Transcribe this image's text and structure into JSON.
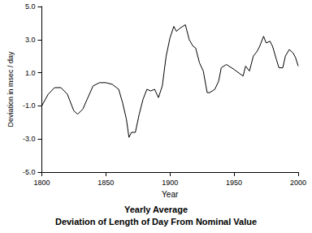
{
  "chart_data": {
    "type": "line",
    "title": "Yearly Average",
    "subtitle": "Deviation of Length of Day From Nominal Value",
    "x_label": "Year",
    "y_label": "Deviation in msec / day",
    "x": [
      1800,
      1805,
      1810,
      1815,
      1820,
      1825,
      1828,
      1832,
      1836,
      1840,
      1845,
      1850,
      1855,
      1860,
      1863,
      1866,
      1868,
      1870,
      1873,
      1876,
      1879,
      1882,
      1885,
      1888,
      1891,
      1894,
      1897,
      1900,
      1903,
      1905,
      1908,
      1912,
      1915,
      1918,
      1920,
      1923,
      1926,
      1929,
      1931,
      1935,
      1938,
      1940,
      1944,
      1950,
      1957,
      1959,
      1962,
      1965,
      1968,
      1970,
      1973,
      1975,
      1978,
      1980,
      1983,
      1985,
      1988,
      1990,
      1993,
      1996,
      1998,
      2000
    ],
    "values": [
      -1.0,
      -0.3,
      0.1,
      0.1,
      -0.3,
      -1.3,
      -1.5,
      -1.2,
      -0.5,
      0.2,
      0.4,
      0.4,
      0.3,
      0.0,
      -0.8,
      -1.8,
      -2.9,
      -2.6,
      -2.6,
      -1.5,
      -0.6,
      0.0,
      -0.1,
      0.0,
      -0.5,
      0.2,
      2.0,
      3.1,
      3.8,
      3.5,
      3.7,
      3.9,
      3.0,
      2.6,
      2.5,
      1.6,
      1.1,
      -0.2,
      -0.2,
      0.0,
      0.5,
      1.3,
      1.5,
      1.2,
      0.8,
      1.4,
      1.1,
      2.0,
      2.3,
      2.6,
      3.2,
      2.8,
      2.9,
      2.6,
      1.8,
      1.3,
      1.3,
      2.0,
      2.4,
      2.2,
      1.9,
      1.4
    ],
    "color": "#000000",
    "xlim": [
      1800,
      2000
    ],
    "xticks": [
      1800,
      1850,
      1900,
      1950,
      2000
    ],
    "ylim": [
      -5,
      5
    ],
    "yticks": [
      {
        "value": -5,
        "label": "-5.0"
      },
      {
        "value": -3,
        "label": "-3.0"
      },
      {
        "value": -1,
        "label": "-1.0"
      },
      {
        "value": 1,
        "label": "1.0"
      },
      {
        "value": 3,
        "label": "3.0"
      },
      {
        "value": 5,
        "label": "5.0"
      }
    ],
    "grid": false
  }
}
